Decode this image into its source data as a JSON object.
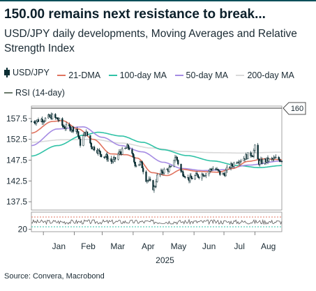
{
  "header": {
    "title": "150.00 remains next resistance to break...",
    "subtitle": "USD/JPY daily developments, Moving Averages and Relative Strength Index"
  },
  "legend": [
    {
      "label": "USD/JPY",
      "color": "#0b2e33",
      "kind": "candle"
    },
    {
      "label": "21-DMA",
      "color": "#e0735f",
      "kind": "line"
    },
    {
      "label": "100-day MA",
      "color": "#2fc2a6",
      "kind": "line"
    },
    {
      "label": "50-day MA",
      "color": "#a58be3",
      "kind": "line"
    },
    {
      "label": "200-day MA",
      "color": "#d9d9d9",
      "kind": "line"
    },
    {
      "label": "RSI (14-day)",
      "color": "#6b7b6b",
      "kind": "line"
    }
  ],
  "footer": {
    "source": "Source: Convera, Macrobond"
  },
  "chart_data": {
    "type": "candlestick",
    "x_axis": {
      "months": [
        "Jan",
        "Feb",
        "Mar",
        "Apr",
        "May",
        "Jun",
        "Jul",
        "Aug"
      ],
      "year": "2025",
      "range": [
        "2024-12-20",
        "2025-08-28"
      ]
    },
    "y_axis": {
      "ticks": [
        "157.5",
        "152.5",
        "147.5",
        "142.5",
        "137.5"
      ],
      "range": [
        135.5,
        160.5
      ]
    },
    "resistance": {
      "value": 160,
      "label": "160",
      "color": "#3a3a3a"
    },
    "rsi_panel": {
      "tick": "20",
      "overbought": 70,
      "oversold": 30,
      "overbought_color": "#e0735f",
      "oversold_color": "#2fc2a6"
    },
    "anchors": {
      "close": [
        [
          "2024-12-20",
          156.8
        ],
        [
          "2025-01-01",
          157.3
        ],
        [
          "2025-01-10",
          158.0
        ],
        [
          "2025-01-14",
          157.5
        ],
        [
          "2025-01-22",
          155.5
        ],
        [
          "2025-02-03",
          155.0
        ],
        [
          "2025-02-07",
          151.5
        ],
        [
          "2025-02-12",
          154.0
        ],
        [
          "2025-02-20",
          150.5
        ],
        [
          "2025-03-03",
          148.5
        ],
        [
          "2025-03-11",
          147.2
        ],
        [
          "2025-03-20",
          149.5
        ],
        [
          "2025-03-27",
          150.6
        ],
        [
          "2025-04-04",
          146.5
        ],
        [
          "2025-04-08",
          146.8
        ],
        [
          "2025-04-15",
          142.8
        ],
        [
          "2025-04-22",
          140.8
        ],
        [
          "2025-04-25",
          143.5
        ],
        [
          "2025-05-02",
          145.0
        ],
        [
          "2025-05-09",
          145.5
        ],
        [
          "2025-05-13",
          148.3
        ],
        [
          "2025-05-20",
          144.5
        ],
        [
          "2025-05-27",
          143.0
        ],
        [
          "2025-06-05",
          143.8
        ],
        [
          "2025-06-12",
          144.3
        ],
        [
          "2025-06-20",
          145.5
        ],
        [
          "2025-06-30",
          144.0
        ],
        [
          "2025-07-07",
          146.0
        ],
        [
          "2025-07-15",
          147.5
        ],
        [
          "2025-07-30",
          149.0
        ],
        [
          "2025-08-01",
          150.5
        ],
        [
          "2025-08-05",
          147.0
        ],
        [
          "2025-08-15",
          147.5
        ],
        [
          "2025-08-22",
          147.8
        ],
        [
          "2025-08-28",
          147.6
        ]
      ],
      "dma21": [
        [
          "2024-12-20",
          154.0
        ],
        [
          "2025-01-10",
          156.8
        ],
        [
          "2025-01-20",
          157.0
        ],
        [
          "2025-02-05",
          155.0
        ],
        [
          "2025-02-20",
          152.5
        ],
        [
          "2025-03-10",
          149.0
        ],
        [
          "2025-03-25",
          148.8
        ],
        [
          "2025-04-05",
          148.0
        ],
        [
          "2025-04-20",
          144.5
        ],
        [
          "2025-05-05",
          143.8
        ],
        [
          "2025-05-20",
          145.3
        ],
        [
          "2025-06-05",
          144.8
        ],
        [
          "2025-06-25",
          144.6
        ],
        [
          "2025-07-10",
          145.5
        ],
        [
          "2025-07-25",
          147.2
        ],
        [
          "2025-08-10",
          147.8
        ],
        [
          "2025-08-28",
          147.6
        ]
      ],
      "ma50": [
        [
          "2024-12-20",
          151.0
        ],
        [
          "2025-01-15",
          155.0
        ],
        [
          "2025-02-10",
          155.5
        ],
        [
          "2025-03-01",
          153.0
        ],
        [
          "2025-03-20",
          151.0
        ],
        [
          "2025-04-10",
          149.5
        ],
        [
          "2025-05-01",
          147.0
        ],
        [
          "2025-05-20",
          145.5
        ],
        [
          "2025-06-10",
          145.0
        ],
        [
          "2025-07-01",
          145.2
        ],
        [
          "2025-07-25",
          146.3
        ],
        [
          "2025-08-28",
          147.3
        ]
      ],
      "ma100": [
        [
          "2024-12-20",
          148.5
        ],
        [
          "2025-01-15",
          151.0
        ],
        [
          "2025-02-10",
          153.5
        ],
        [
          "2025-02-25",
          154.2
        ],
        [
          "2025-03-20",
          153.3
        ],
        [
          "2025-04-10",
          151.8
        ],
        [
          "2025-05-01",
          150.0
        ],
        [
          "2025-05-25",
          148.6
        ],
        [
          "2025-06-20",
          147.3
        ],
        [
          "2025-07-15",
          146.2
        ],
        [
          "2025-08-05",
          145.7
        ],
        [
          "2025-08-28",
          146.2
        ]
      ],
      "ma200": [
        [
          "2024-12-20",
          151.8
        ],
        [
          "2025-01-20",
          152.4
        ],
        [
          "2025-02-20",
          152.5
        ],
        [
          "2025-03-20",
          151.6
        ],
        [
          "2025-04-20",
          150.4
        ],
        [
          "2025-05-20",
          149.6
        ],
        [
          "2025-06-20",
          149.3
        ],
        [
          "2025-07-20",
          149.2
        ],
        [
          "2025-08-28",
          149.4
        ]
      ]
    }
  }
}
